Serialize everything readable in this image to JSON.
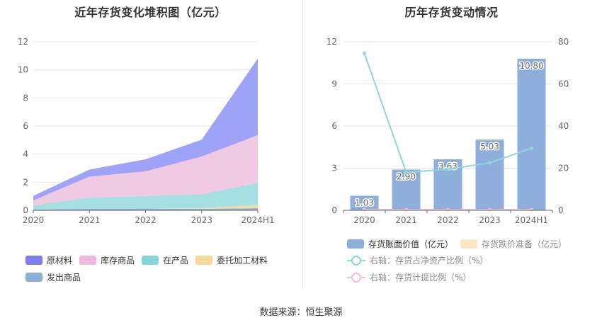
{
  "charts_title_left": "近年存货变化堆积图（亿元）",
  "charts_title_right": "历年存货变动情况",
  "source": "数据来源：恒生聚源",
  "chart_data": [
    {
      "type": "area",
      "title": "近年存货变化堆积图（亿元）",
      "x": [
        "2020",
        "2021",
        "2022",
        "2023",
        "2024H1"
      ],
      "ylim": [
        0,
        12
      ],
      "yticks": [
        "0",
        "2",
        "4",
        "6",
        "8",
        "10",
        "12"
      ],
      "stacked": true,
      "legend_position": "bottom",
      "series": [
        {
          "name": "发出商品",
          "color": "#8eaedc",
          "values": [
            0.05,
            0.1,
            0.12,
            0.1,
            0.15
          ]
        },
        {
          "name": "委托加工材料",
          "color": "#fcd9a0",
          "values": [
            0.0,
            0.0,
            0.0,
            0.05,
            0.2
          ]
        },
        {
          "name": "在产品",
          "color": "#a4e0e2",
          "values": [
            0.3,
            0.8,
            0.9,
            1.0,
            1.6
          ]
        },
        {
          "name": "库存商品",
          "color": "#f0c9e2",
          "values": [
            0.35,
            1.5,
            1.75,
            2.68,
            3.4
          ]
        },
        {
          "name": "原材料",
          "color": "#9fa3f7",
          "values": [
            0.33,
            0.5,
            0.86,
            1.2,
            5.45
          ]
        }
      ],
      "legend_order": [
        "原材料",
        "库存商品",
        "在产品",
        "委托加工材料",
        "发出商品"
      ],
      "legend_colors": {
        "原材料": "#7b7ff0",
        "库存商品": "#f0b8da",
        "在产品": "#86d6d9",
        "委托加工材料": "#fcd79a",
        "发出商品": "#8eaedc"
      }
    },
    {
      "type": "bar",
      "title": "历年存货变动情况",
      "categories": [
        "2020",
        "2021",
        "2022",
        "2023",
        "2024H1"
      ],
      "ylim": [
        0,
        12
      ],
      "yticks": [
        "0",
        "3",
        "6",
        "9",
        "12"
      ],
      "y2lim": [
        0,
        80
      ],
      "y2ticks": [
        "0",
        "20",
        "40",
        "60",
        "80"
      ],
      "legend_position": "bottom",
      "series": [
        {
          "name": "存货账面价值（亿元）",
          "type": "bar",
          "axis": "left",
          "color": "#8eaedc",
          "values": [
            1.03,
            2.9,
            3.63,
            5.03,
            10.8
          ],
          "labels": [
            "1.03",
            "2.90",
            "3.63",
            "5.03",
            "10.80"
          ]
        },
        {
          "name": "存货跌价准备（亿元）",
          "type": "bar",
          "axis": "left",
          "color": "#fde6c4",
          "values": [
            0,
            0,
            0,
            0,
            0
          ]
        },
        {
          "name": "右轴：存货占净资产比例（%）",
          "type": "line",
          "axis": "right",
          "color": "#8dd6da",
          "values": [
            74.5,
            18.0,
            19.5,
            22.5,
            29.5
          ]
        },
        {
          "name": "右轴：存货计提比例（%）",
          "type": "line",
          "axis": "right",
          "color": "#f2c0d8",
          "values": [
            0.3,
            0.3,
            0.3,
            0.3,
            0.3
          ]
        }
      ]
    }
  ]
}
